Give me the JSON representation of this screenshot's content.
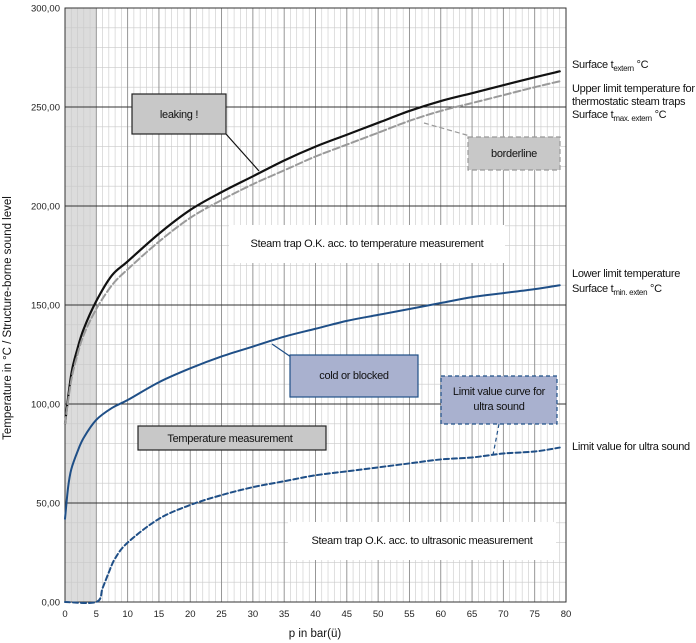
{
  "chart_data": {
    "type": "line",
    "title": "",
    "xlabel": "p in bar(ü)",
    "ylabel": "Temperature in °C / Structure-borne sound level",
    "xlim": [
      0,
      80
    ],
    "ylim": [
      0,
      300
    ],
    "x_ticks": [
      "0",
      "5",
      "10",
      "15",
      "20",
      "25",
      "30",
      "35",
      "40",
      "45",
      "50",
      "55",
      "60",
      "65",
      "70",
      "75",
      "80"
    ],
    "y_ticks": [
      "0,00",
      "50,00",
      "100,00",
      "150,00",
      "200,00",
      "250,00",
      "300,00"
    ],
    "grid": true,
    "shaded_region": {
      "x_from": 0,
      "x_to": 5
    },
    "series": [
      {
        "name": "Surface t extern °C",
        "style": "solid",
        "color": "#111111",
        "points": [
          [
            0,
            90
          ],
          [
            1,
            115
          ],
          [
            2,
            128
          ],
          [
            3,
            138
          ],
          [
            5,
            152
          ],
          [
            7.5,
            165
          ],
          [
            10,
            172
          ],
          [
            15,
            186
          ],
          [
            20,
            198
          ],
          [
            25,
            207
          ],
          [
            30,
            215
          ],
          [
            35,
            223
          ],
          [
            40,
            230
          ],
          [
            45,
            236
          ],
          [
            50,
            242
          ],
          [
            55,
            248
          ],
          [
            60,
            253
          ],
          [
            65,
            257
          ],
          [
            70,
            261
          ],
          [
            75,
            265
          ],
          [
            79,
            268
          ]
        ]
      },
      {
        "name": "Upper limit temperature for thermostatic steam traps Surface t max. extern °C",
        "style": "dashed",
        "color": "#9a9a9a",
        "points": [
          [
            0,
            90
          ],
          [
            1,
            112
          ],
          [
            2,
            125
          ],
          [
            3,
            135
          ],
          [
            5,
            148
          ],
          [
            7.5,
            160
          ],
          [
            10,
            168
          ],
          [
            15,
            182
          ],
          [
            20,
            194
          ],
          [
            25,
            203
          ],
          [
            30,
            211
          ],
          [
            35,
            218
          ],
          [
            40,
            225
          ],
          [
            45,
            231
          ],
          [
            50,
            237
          ],
          [
            55,
            243
          ],
          [
            60,
            248
          ],
          [
            65,
            252
          ],
          [
            70,
            256
          ],
          [
            75,
            260
          ],
          [
            79,
            263
          ]
        ]
      },
      {
        "name": "Lower limit temperature Surface t min. extern °C",
        "style": "solid",
        "color": "#1f4f87",
        "points": [
          [
            0,
            42
          ],
          [
            0.5,
            58
          ],
          [
            1,
            67
          ],
          [
            2,
            76
          ],
          [
            3,
            83
          ],
          [
            5,
            92
          ],
          [
            7.5,
            98
          ],
          [
            10,
            102
          ],
          [
            15,
            111
          ],
          [
            20,
            118
          ],
          [
            25,
            124
          ],
          [
            30,
            129
          ],
          [
            35,
            134
          ],
          [
            40,
            138
          ],
          [
            45,
            142
          ],
          [
            50,
            145
          ],
          [
            55,
            148
          ],
          [
            60,
            151
          ],
          [
            65,
            154
          ],
          [
            70,
            156
          ],
          [
            75,
            158
          ],
          [
            79,
            160
          ]
        ]
      },
      {
        "name": "Limit value for ultra sound",
        "style": "dashed",
        "color": "#1f4f87",
        "points": [
          [
            0,
            0
          ],
          [
            5,
            0
          ],
          [
            6,
            7
          ],
          [
            7,
            15
          ],
          [
            8,
            22
          ],
          [
            10,
            30
          ],
          [
            15,
            42
          ],
          [
            20,
            49
          ],
          [
            25,
            54
          ],
          [
            30,
            58
          ],
          [
            35,
            61
          ],
          [
            40,
            64
          ],
          [
            45,
            66
          ],
          [
            50,
            68
          ],
          [
            55,
            70
          ],
          [
            60,
            72
          ],
          [
            65,
            73
          ],
          [
            70,
            75
          ],
          [
            75,
            76
          ],
          [
            79,
            78
          ]
        ]
      }
    ]
  },
  "labels": {
    "surface_extern_main": "Surface t",
    "surface_extern_sub": "extern",
    "surface_extern_tail": " °C",
    "upper_line1": "Upper limit temperature for",
    "upper_line2": "thermostatic steam traps",
    "upper_line3_main": "Surface t",
    "upper_line3_sub": "max. extern",
    "upper_line3_tail": " °C",
    "lower_line1": "Lower limit temperature",
    "lower_line2_main": "Surface t",
    "lower_line2_sub": "min. exten",
    "lower_line2_tail": " °C",
    "ultrasound_limit": "Limit value for ultra sound"
  },
  "boxes": {
    "leaking": "leaking !",
    "borderline": "borderline",
    "cold_blocked": "cold or blocked",
    "limit_curve_line1": "Limit value curve for",
    "limit_curve_line2": "ultra sound",
    "temperature_measurement": "Temperature measurement"
  },
  "regions": {
    "ok_temperature": "Steam trap O.K. acc. to temperature measurement",
    "ok_ultrasonic": "Steam trap O.K. acc. to ultrasonic measurement"
  },
  "colors": {
    "box_gray": "#c8c8c8",
    "box_blue": "#a9b1cf",
    "curve_blue": "#1f4f87",
    "shade": "#dcdcdc"
  }
}
